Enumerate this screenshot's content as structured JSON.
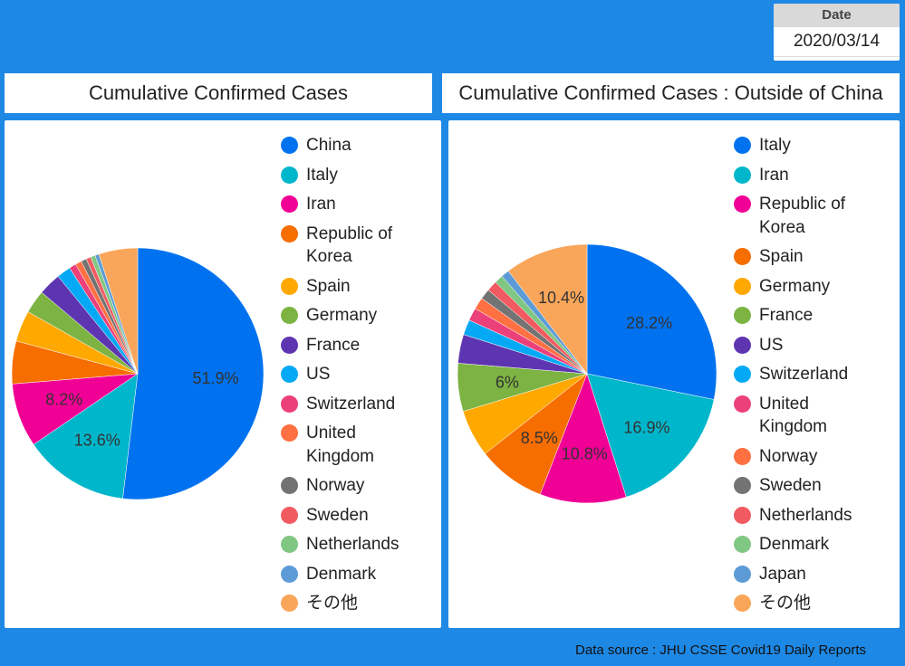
{
  "date_filter": {
    "label": "Date",
    "value": "2020/03/14"
  },
  "source": "Data source : JHU CSSE Covid19 Daily Reports",
  "chart_data": [
    {
      "type": "pie",
      "title": "Cumulative Confirmed Cases",
      "slices": [
        {
          "name": "China",
          "value": 51.9,
          "color": "#0072f0",
          "labeled": true
        },
        {
          "name": "Italy",
          "value": 13.6,
          "color": "#00b6cb",
          "labeled": true
        },
        {
          "name": "Iran",
          "value": 8.2,
          "color": "#f10096",
          "labeled": true
        },
        {
          "name": "Republic of Korea",
          "value": 5.5,
          "color": "#f66d00",
          "labeled": false
        },
        {
          "name": "Spain",
          "value": 4.0,
          "color": "#ffa800",
          "labeled": false
        },
        {
          "name": "Germany",
          "value": 3.0,
          "color": "#7cb342",
          "labeled": false
        },
        {
          "name": "France",
          "value": 2.9,
          "color": "#5e35b1",
          "labeled": false
        },
        {
          "name": "US",
          "value": 1.8,
          "color": "#03a9f4",
          "labeled": false
        },
        {
          "name": "Switzerland",
          "value": 0.9,
          "color": "#ec407a",
          "labeled": false
        },
        {
          "name": "United Kingdom",
          "value": 0.8,
          "color": "#ff7043",
          "labeled": false
        },
        {
          "name": "Norway",
          "value": 0.7,
          "color": "#737373",
          "labeled": false
        },
        {
          "name": "Sweden",
          "value": 0.6,
          "color": "#f15a60",
          "labeled": false
        },
        {
          "name": "Netherlands",
          "value": 0.6,
          "color": "#81c784",
          "labeled": false
        },
        {
          "name": "Denmark",
          "value": 0.5,
          "color": "#5c9bd6",
          "labeled": false
        },
        {
          "name": "その他",
          "value": 5.0,
          "color": "#f9a65a",
          "labeled": false
        }
      ]
    },
    {
      "type": "pie",
      "title": "Cumulative Confirmed Cases : Outside of China",
      "slices": [
        {
          "name": "Italy",
          "value": 28.2,
          "color": "#0072f0",
          "labeled": true
        },
        {
          "name": "Iran",
          "value": 16.9,
          "color": "#00b6cb",
          "labeled": true
        },
        {
          "name": "Republic of Korea",
          "value": 10.8,
          "color": "#f10096",
          "labeled": true
        },
        {
          "name": "Spain",
          "value": 8.5,
          "color": "#f66d00",
          "labeled": true
        },
        {
          "name": "Germany",
          "value": 5.9,
          "color": "#ffa800",
          "labeled": false
        },
        {
          "name": "France",
          "value": 6,
          "color": "#7cb342",
          "labeled": true
        },
        {
          "name": "US",
          "value": 3.6,
          "color": "#5e35b1",
          "labeled": false
        },
        {
          "name": "Switzerland",
          "value": 1.9,
          "color": "#03a9f4",
          "labeled": false
        },
        {
          "name": "United Kingdom",
          "value": 1.6,
          "color": "#ec407a",
          "labeled": false
        },
        {
          "name": "Norway",
          "value": 1.5,
          "color": "#ff7043",
          "labeled": false
        },
        {
          "name": "Sweden",
          "value": 1.3,
          "color": "#737373",
          "labeled": false
        },
        {
          "name": "Netherlands",
          "value": 1.3,
          "color": "#f15a60",
          "labeled": false
        },
        {
          "name": "Denmark",
          "value": 1.1,
          "color": "#81c784",
          "labeled": false
        },
        {
          "name": "Japan",
          "value": 1.0,
          "color": "#5c9bd6",
          "labeled": false
        },
        {
          "name": "その他",
          "value": 10.4,
          "color": "#f9a65a",
          "labeled": true
        }
      ]
    }
  ]
}
